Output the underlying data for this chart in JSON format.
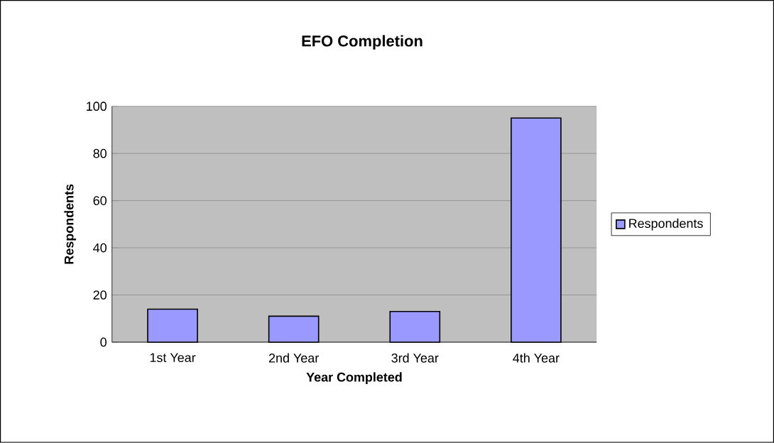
{
  "chart_data": {
    "type": "bar",
    "title": "EFO Completion",
    "xlabel": "Year Completed",
    "ylabel": "Respondents",
    "categories": [
      "1st Year",
      "2nd Year",
      "3rd Year",
      "4th Year"
    ],
    "series": [
      {
        "name": "Respondents",
        "color": "#9999ff",
        "values": [
          14,
          11,
          13,
          95
        ]
      }
    ],
    "ylim": [
      0,
      100
    ],
    "yticks": [
      0,
      20,
      40,
      60,
      80,
      100
    ],
    "grid": "y",
    "legend": "right"
  }
}
